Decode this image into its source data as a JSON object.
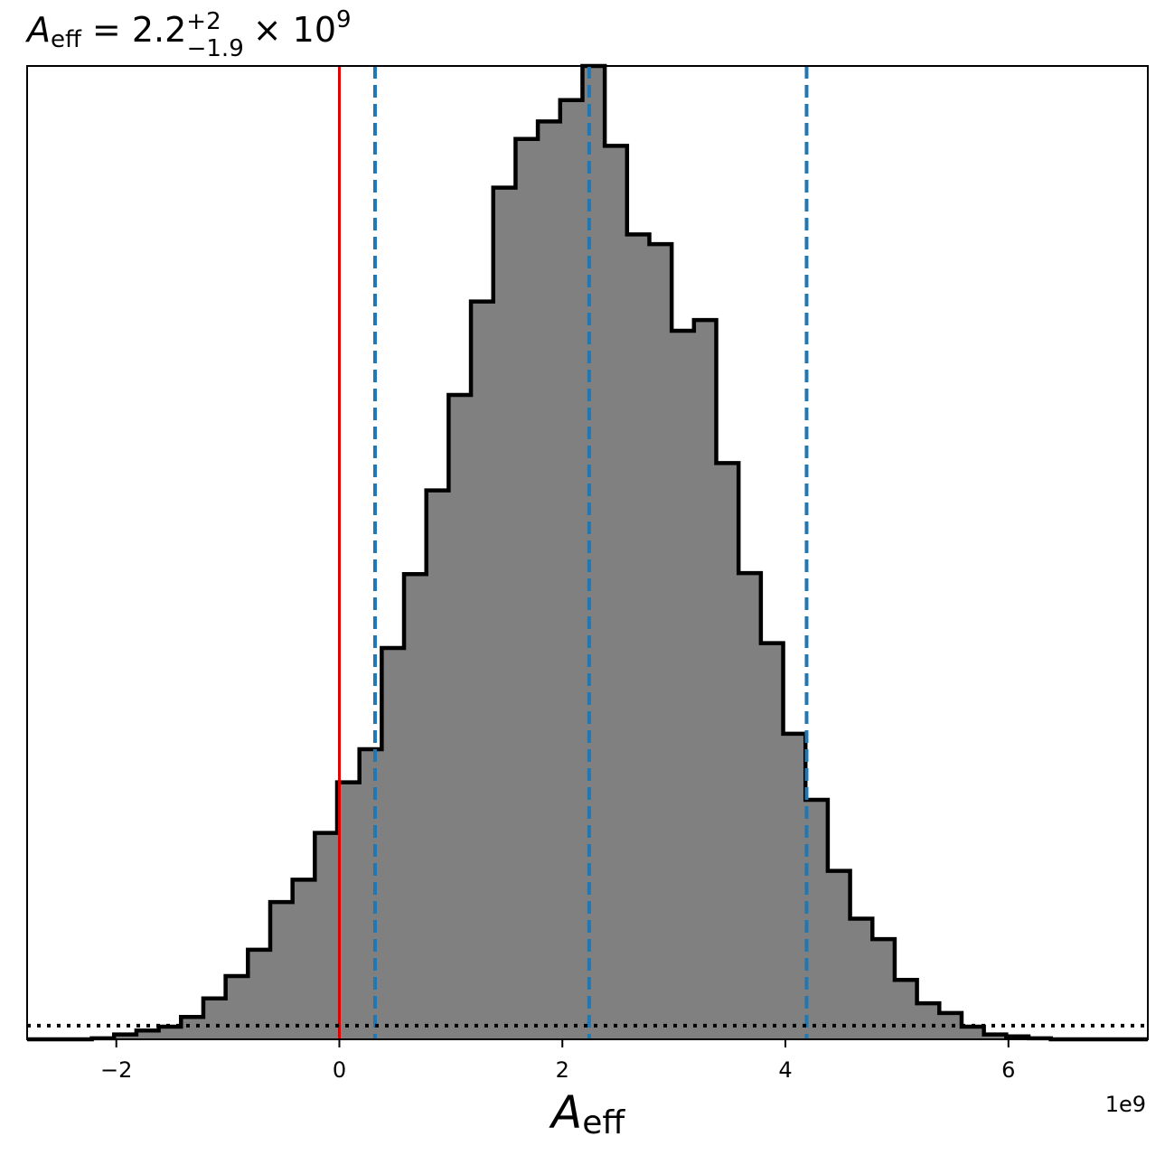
{
  "chart_data": {
    "type": "histogram",
    "title": {
      "symbol": "A",
      "symbol_sub": "eff",
      "equals": "= 2.2",
      "sup": "+2",
      "sub": "−1.9",
      "times": "× 10",
      "exponent": "9"
    },
    "xlabel": {
      "symbol": "A",
      "symbol_sub": "eff"
    },
    "x_offset_label": "1e9",
    "xlim": [
      -2.8,
      7.25
    ],
    "ylim": [
      0,
      1.0
    ],
    "x_ticks": [
      {
        "value": -2,
        "label": "−2"
      },
      {
        "value": 0,
        "label": "0"
      },
      {
        "value": 2,
        "label": "2"
      },
      {
        "value": 4,
        "label": "4"
      },
      {
        "value": 6,
        "label": "6"
      }
    ],
    "bin_start": -2.22,
    "bin_width": 0.2,
    "counts": [
      0.001,
      0.005,
      0.009,
      0.013,
      0.023,
      0.042,
      0.065,
      0.092,
      0.141,
      0.164,
      0.212,
      0.264,
      0.298,
      0.402,
      0.478,
      0.564,
      0.662,
      0.758,
      0.875,
      0.925,
      0.943,
      0.965,
      1.0,
      0.918,
      0.827,
      0.817,
      0.728,
      0.739,
      0.592,
      0.479,
      0.407,
      0.314,
      0.246,
      0.173,
      0.124,
      0.103,
      0.061,
      0.037,
      0.027,
      0.013,
      0.005,
      0.003,
      0.001
    ],
    "vlines": [
      {
        "value": 0.0,
        "color": "#e00000",
        "style": "solid"
      },
      {
        "value": 0.32,
        "color": "#1f77b4",
        "style": "dashed"
      },
      {
        "value": 2.24,
        "color": "#1f77b4",
        "style": "dashed"
      },
      {
        "value": 4.19,
        "color": "#1f77b4",
        "style": "dashed"
      }
    ],
    "hline": {
      "value": 0.014,
      "color": "#000000",
      "style": "dotted"
    },
    "fill_color": "#808080",
    "edge_color": "#000000",
    "grid": false,
    "legend": "none"
  }
}
